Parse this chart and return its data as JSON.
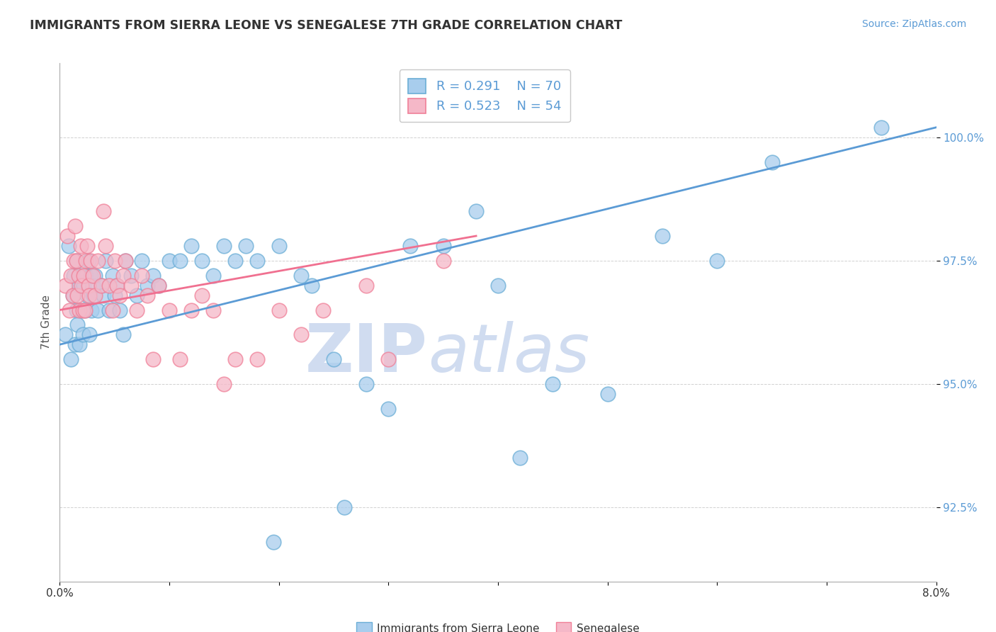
{
  "title": "IMMIGRANTS FROM SIERRA LEONE VS SENEGALESE 7TH GRADE CORRELATION CHART",
  "source_text": "Source: ZipAtlas.com",
  "ylabel": "7th Grade",
  "xlim": [
    0.0,
    8.0
  ],
  "ylim": [
    91.0,
    101.5
  ],
  "yticks": [
    92.5,
    95.0,
    97.5,
    100.0
  ],
  "ytick_labels": [
    "92.5%",
    "95.0%",
    "97.5%",
    "100.0%"
  ],
  "xticks": [
    0.0,
    1.0,
    2.0,
    3.0,
    4.0,
    5.0,
    6.0,
    7.0,
    8.0
  ],
  "xtick_labels_show": [
    "0.0%",
    "",
    "",
    "",
    "",
    "",
    "",
    "",
    "8.0%"
  ],
  "legend_r1": "R = 0.291",
  "legend_n1": "N = 70",
  "legend_r2": "R = 0.523",
  "legend_n2": "N = 54",
  "color_blue": "#A8CDED",
  "color_pink": "#F5B8C8",
  "color_blue_edge": "#6BAED6",
  "color_pink_edge": "#F08098",
  "color_blue_line": "#5B9BD5",
  "color_pink_line": "#F07090",
  "watermark_zip": "ZIP",
  "watermark_atlas": "atlas",
  "watermark_color": "#D0DCF0",
  "blue_scatter_x": [
    0.05,
    0.08,
    0.1,
    0.12,
    0.13,
    0.14,
    0.15,
    0.15,
    0.16,
    0.17,
    0.18,
    0.19,
    0.2,
    0.21,
    0.22,
    0.23,
    0.24,
    0.25,
    0.26,
    0.27,
    0.28,
    0.29,
    0.3,
    0.31,
    0.32,
    0.35,
    0.38,
    0.4,
    0.42,
    0.45,
    0.48,
    0.5,
    0.52,
    0.55,
    0.58,
    0.6,
    0.65,
    0.7,
    0.75,
    0.8,
    0.85,
    0.9,
    1.0,
    1.1,
    1.2,
    1.3,
    1.4,
    1.5,
    1.6,
    1.7,
    1.8,
    2.0,
    2.2,
    2.5,
    2.8,
    3.0,
    3.5,
    4.0,
    4.5,
    5.0,
    5.5,
    6.0,
    6.5,
    3.2,
    3.8,
    4.2,
    2.3,
    1.95,
    2.6,
    7.5
  ],
  "blue_scatter_y": [
    96.0,
    97.8,
    95.5,
    96.8,
    97.2,
    95.8,
    96.5,
    97.5,
    96.2,
    97.0,
    95.8,
    97.2,
    96.5,
    96.0,
    97.0,
    96.5,
    97.2,
    96.8,
    97.5,
    96.0,
    97.2,
    96.5,
    97.0,
    96.8,
    97.2,
    96.5,
    97.0,
    96.8,
    97.5,
    96.5,
    97.2,
    96.8,
    97.0,
    96.5,
    96.0,
    97.5,
    97.2,
    96.8,
    97.5,
    97.0,
    97.2,
    97.0,
    97.5,
    97.5,
    97.8,
    97.5,
    97.2,
    97.8,
    97.5,
    97.8,
    97.5,
    97.8,
    97.2,
    95.5,
    95.0,
    94.5,
    97.8,
    97.0,
    95.0,
    94.8,
    98.0,
    97.5,
    99.5,
    97.8,
    98.5,
    93.5,
    97.0,
    91.8,
    92.5,
    100.2
  ],
  "pink_scatter_x": [
    0.05,
    0.07,
    0.09,
    0.1,
    0.12,
    0.13,
    0.14,
    0.15,
    0.16,
    0.17,
    0.18,
    0.19,
    0.2,
    0.21,
    0.22,
    0.23,
    0.24,
    0.25,
    0.26,
    0.27,
    0.28,
    0.3,
    0.32,
    0.35,
    0.38,
    0.4,
    0.42,
    0.45,
    0.48,
    0.5,
    0.52,
    0.55,
    0.58,
    0.6,
    0.65,
    0.7,
    0.75,
    0.8,
    0.85,
    0.9,
    1.0,
    1.1,
    1.2,
    1.3,
    1.5,
    1.6,
    1.8,
    2.0,
    2.2,
    2.4,
    2.8,
    3.0,
    3.5,
    1.4
  ],
  "pink_scatter_y": [
    97.0,
    98.0,
    96.5,
    97.2,
    96.8,
    97.5,
    98.2,
    97.5,
    96.8,
    97.2,
    96.5,
    97.8,
    97.0,
    96.5,
    97.2,
    96.5,
    97.5,
    97.8,
    97.0,
    96.8,
    97.5,
    97.2,
    96.8,
    97.5,
    97.0,
    98.5,
    97.8,
    97.0,
    96.5,
    97.5,
    97.0,
    96.8,
    97.2,
    97.5,
    97.0,
    96.5,
    97.2,
    96.8,
    95.5,
    97.0,
    96.5,
    95.5,
    96.5,
    96.8,
    95.0,
    95.5,
    95.5,
    96.5,
    96.0,
    96.5,
    97.0,
    95.5,
    97.5,
    96.5
  ],
  "blue_trend_x": [
    0.0,
    8.0
  ],
  "blue_trend_y": [
    95.8,
    100.2
  ],
  "pink_trend_x": [
    0.0,
    3.8
  ],
  "pink_trend_y": [
    96.5,
    98.0
  ]
}
